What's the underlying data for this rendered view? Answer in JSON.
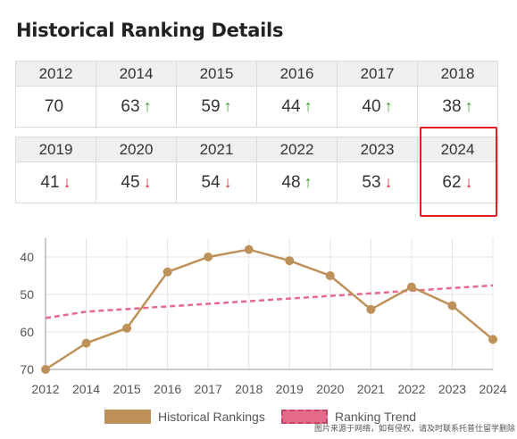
{
  "page": {
    "title": "Historical Ranking Details",
    "watermark": "图片来源于网络，如有侵权，请及时联系托普仕留学删除"
  },
  "table_rows": [
    {
      "years": [
        "2012",
        "2014",
        "2015",
        "2016",
        "2017",
        "2018"
      ],
      "ranks": [
        "70",
        "63",
        "59",
        "44",
        "40",
        "38"
      ],
      "arrows": [
        "",
        "↑",
        "↑",
        "↑",
        "↑",
        "↑"
      ],
      "directions": [
        "none",
        "up",
        "up",
        "up",
        "up",
        "up"
      ]
    },
    {
      "years": [
        "2019",
        "2020",
        "2021",
        "2022",
        "2023",
        "2024"
      ],
      "ranks": [
        "41",
        "45",
        "54",
        "48",
        "53",
        "62"
      ],
      "arrows": [
        "↓",
        "↓",
        "↓",
        "↑",
        "↓",
        "↓"
      ],
      "directions": [
        "down",
        "down",
        "down",
        "up",
        "down",
        "down"
      ]
    }
  ],
  "highlighted_year": "2024",
  "colors": {
    "rank_line": "#bf915a",
    "trend_line": "#e56a8c",
    "up_arrow": "#3a9a2a",
    "down_arrow": "#d22b3a",
    "highlight": "#e02020"
  },
  "chart_data": {
    "type": "line",
    "title": "",
    "xlabel": "",
    "ylabel": "",
    "categories": [
      "2012",
      "2014",
      "2015",
      "2016",
      "2017",
      "2018",
      "2019",
      "2020",
      "2021",
      "2022",
      "2023",
      "2024"
    ],
    "y_inverted": true,
    "ylim": [
      70,
      35
    ],
    "y_ticks": [
      40,
      50,
      60,
      70
    ],
    "grid": true,
    "legend_position": "bottom",
    "series": [
      {
        "name": "Historical Rankings",
        "style": "solid-with-markers",
        "color": "#bf915a",
        "values": [
          70,
          63,
          59,
          44,
          40,
          38,
          41,
          45,
          54,
          48,
          53,
          62
        ]
      },
      {
        "name": "Ranking Trend",
        "style": "dashed",
        "color": "#e56a8c",
        "values": [
          56.3,
          54.6,
          53.9,
          53.2,
          52.5,
          51.8,
          51.1,
          50.4,
          49.7,
          49.0,
          48.3,
          47.6
        ]
      }
    ]
  }
}
